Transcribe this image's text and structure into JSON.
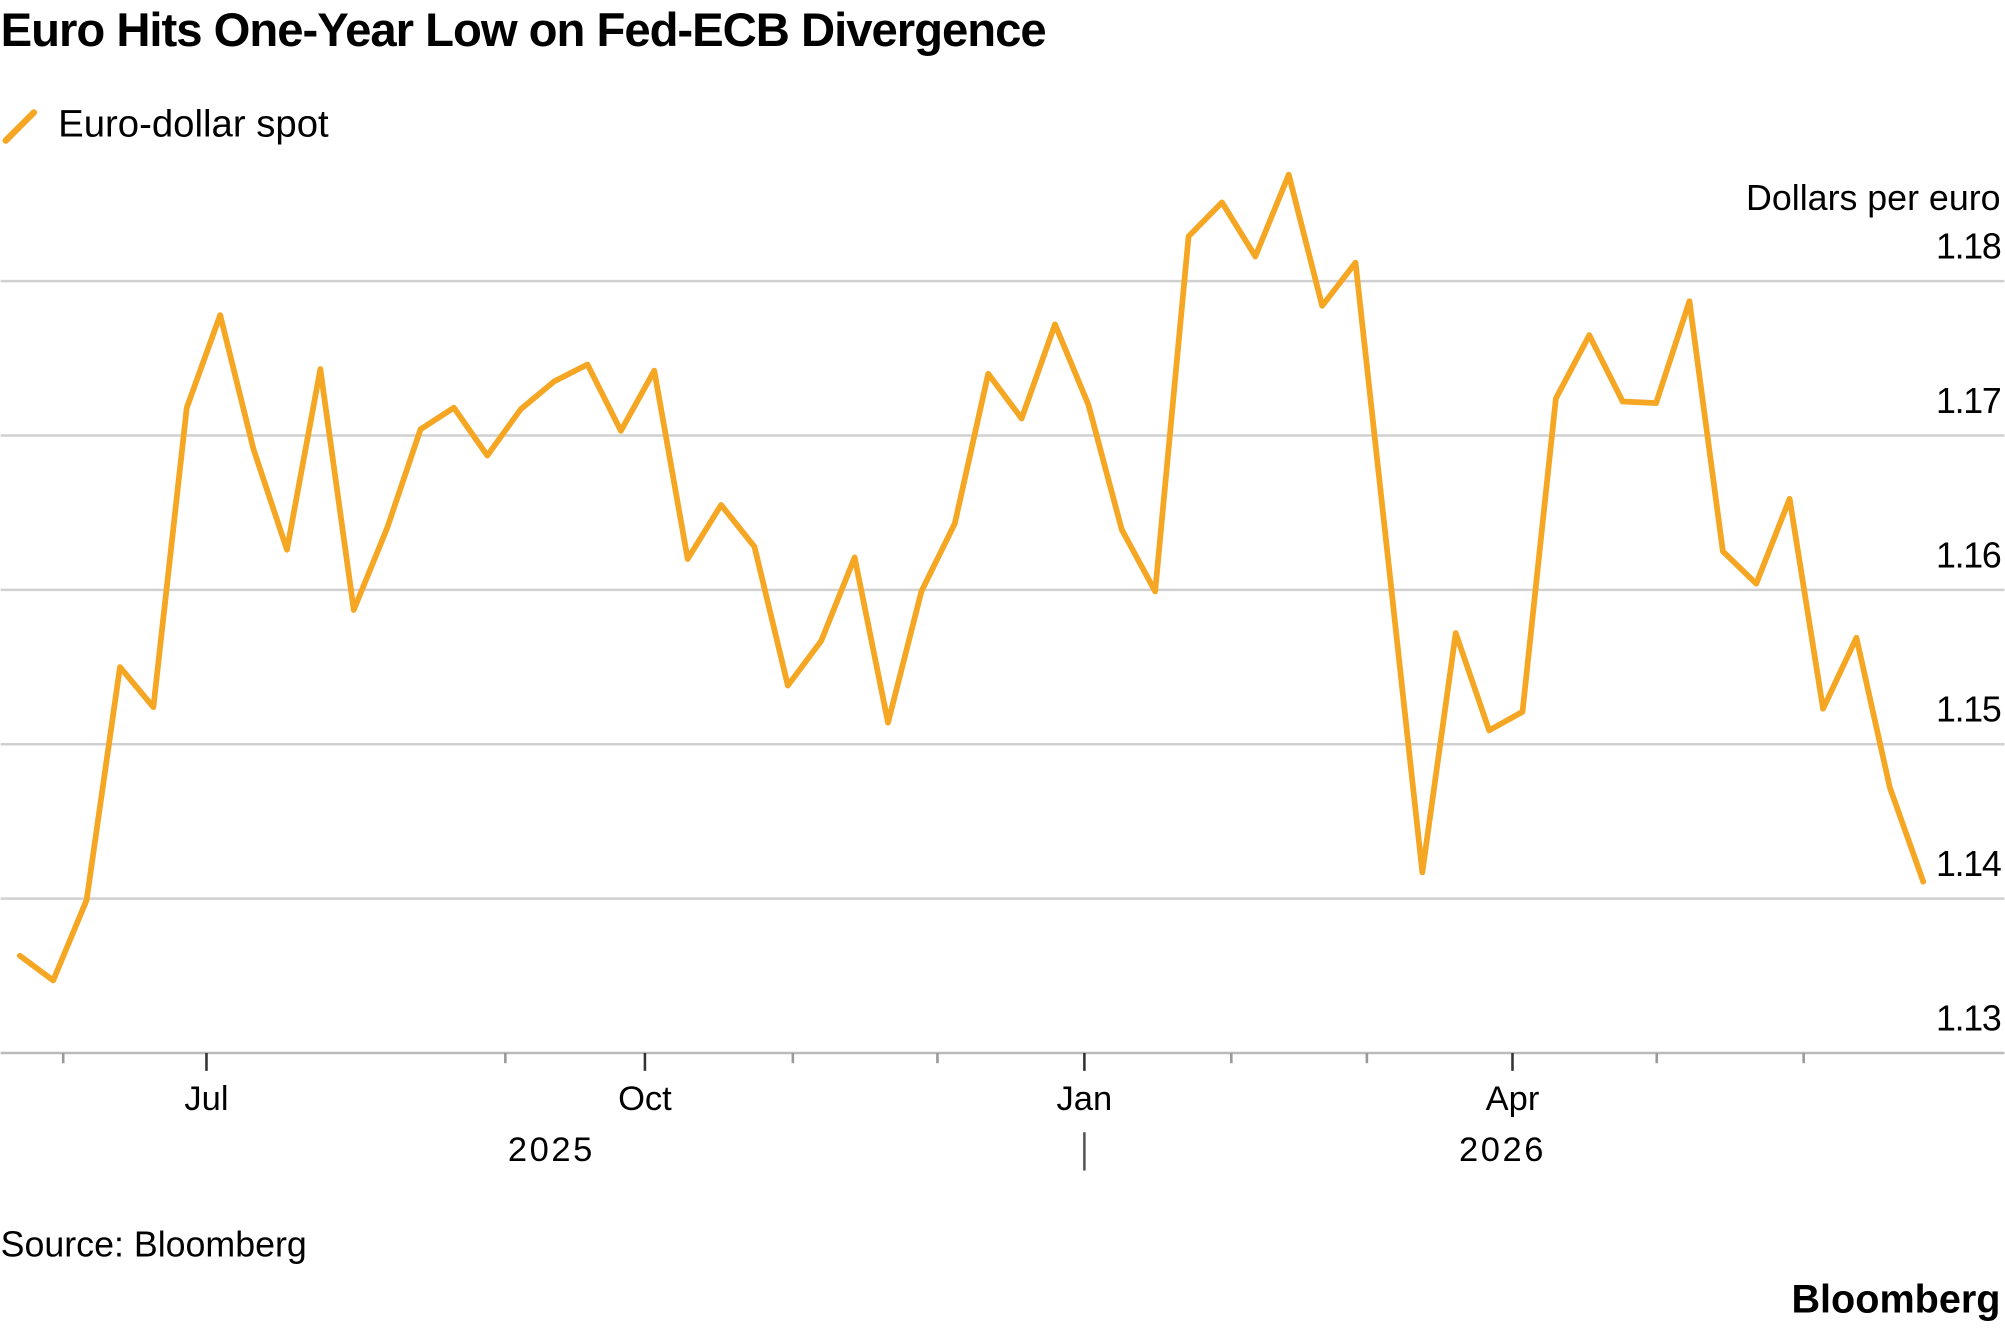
{
  "chart_data": {
    "type": "line",
    "title": "Euro Hits One-Year Low on Fed-ECB Divergence",
    "y_label": "Dollars per euro",
    "source": "Source: Bloomberg",
    "logo": "Bloomberg",
    "x": [
      0,
      1,
      2,
      3,
      4,
      5,
      6,
      7,
      8,
      9,
      10,
      11,
      12,
      13,
      14,
      15,
      16,
      17,
      18,
      19,
      20,
      21,
      22,
      23,
      24,
      25,
      26,
      27,
      28,
      29,
      30,
      31,
      32,
      33,
      34,
      35,
      36,
      37,
      38,
      39,
      40,
      41,
      42,
      43,
      44,
      45,
      46,
      47,
      48,
      49,
      50,
      51,
      52,
      53,
      54,
      55,
      56,
      57
    ],
    "series": [
      {
        "name": "Euro-dollar spot",
        "color": "#f5a623",
        "values": [
          1.1363,
          1.1347,
          1.1399,
          1.155,
          1.1524,
          1.1718,
          1.1778,
          1.1691,
          1.1626,
          1.1743,
          1.1587,
          1.164,
          1.1704,
          1.1718,
          1.1687,
          1.1717,
          1.1735,
          1.1746,
          1.1703,
          1.1742,
          1.162,
          1.1655,
          1.1628,
          1.1538,
          1.1567,
          1.1621,
          1.1514,
          1.1599,
          1.1643,
          1.174,
          1.1711,
          1.1772,
          1.172,
          1.1639,
          1.1599,
          1.1829,
          1.1851,
          1.1816,
          1.1869,
          1.1784,
          1.1812,
          1.1615,
          1.1417,
          1.1572,
          1.1509,
          1.1521,
          1.1724,
          1.1765,
          1.1722,
          1.1721,
          1.1787,
          1.1625,
          1.1604,
          1.1659,
          1.1523,
          1.1569,
          1.1472,
          1.1411
        ]
      }
    ],
    "xlim": [
      -0.574,
      59.43
    ],
    "xticks": [
      {
        "value": 5.59,
        "label": "Jul"
      },
      {
        "value": 18.72,
        "label": "Oct"
      },
      {
        "value": 31.88,
        "label": "Jan"
      },
      {
        "value": 44.7,
        "label": "Apr"
      }
    ],
    "minor_xticks": [
      1.3,
      14.54,
      23.15,
      27.48,
      36.28,
      40.34,
      49.02,
      53.42
    ],
    "year_labels": [
      {
        "value": 15.92,
        "label": "2025"
      },
      {
        "value": 44.4,
        "label": "2026"
      }
    ],
    "year_divider": 31.88,
    "ylim": [
      1.13,
      1.19
    ],
    "yticks": [
      1.13,
      1.14,
      1.15,
      1.16,
      1.17,
      1.18
    ],
    "grid": true
  }
}
